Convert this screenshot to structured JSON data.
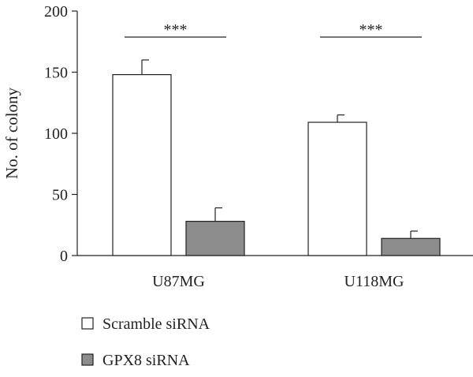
{
  "chart_data": {
    "type": "bar",
    "ylabel": "No. of colony",
    "ylim": [
      0,
      200
    ],
    "yticks": [
      0,
      50,
      100,
      150,
      200
    ],
    "categories": [
      "U87MG",
      "U118MG"
    ],
    "series": [
      {
        "name": "Scramble siRNA",
        "values": [
          148,
          109
        ],
        "errors": [
          12,
          6
        ],
        "color": "#ffffff"
      },
      {
        "name": "GPX8 siRNA",
        "values": [
          28,
          14
        ],
        "errors": [
          11,
          6
        ],
        "color": "#8c8c8c"
      }
    ],
    "significance": [
      "***",
      "***"
    ],
    "legend_position": "bottom-left"
  }
}
